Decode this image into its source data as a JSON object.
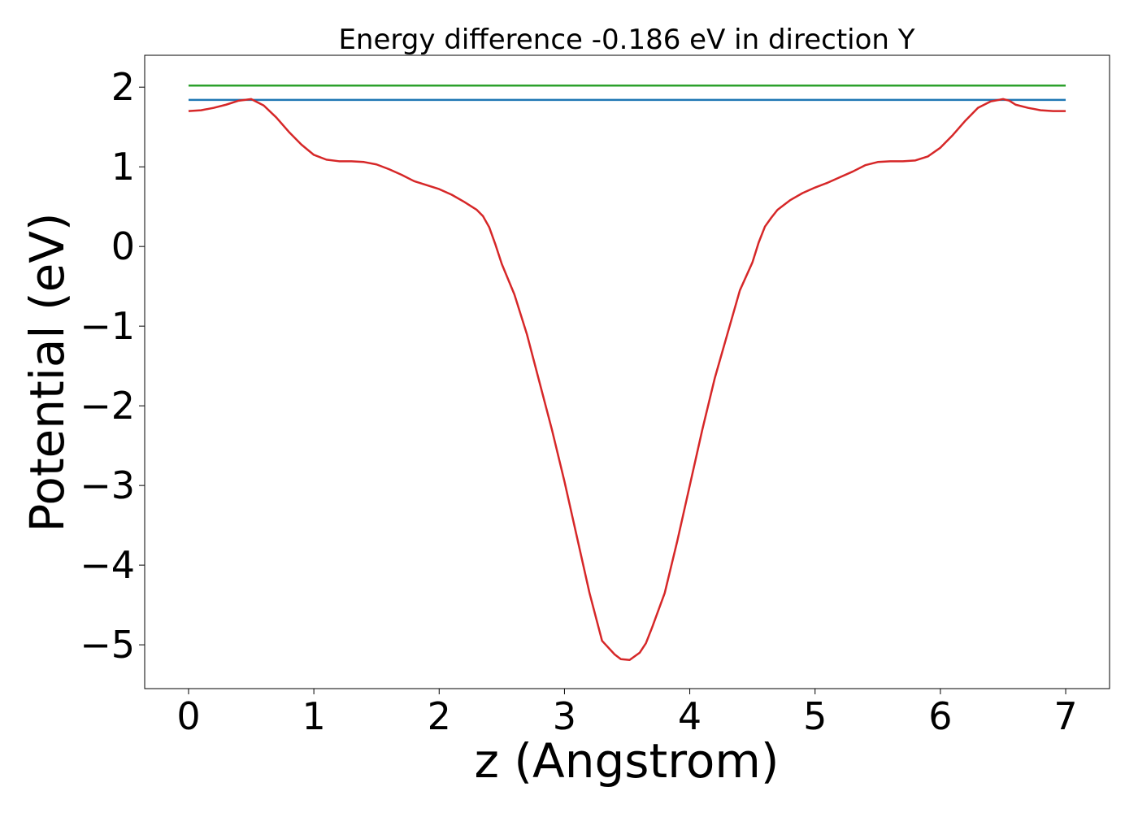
{
  "chart_data": {
    "type": "line",
    "title": "Energy difference -0.186 eV in direction Y",
    "xlabel": "z (Angstrom)",
    "ylabel": "Potential (eV)",
    "xlim": [
      -0.35,
      7.35
    ],
    "ylim": [
      -5.55,
      2.4
    ],
    "xticks": [
      0,
      1,
      2,
      3,
      4,
      5,
      6,
      7
    ],
    "xtick_labels": [
      "0",
      "1",
      "2",
      "3",
      "4",
      "5",
      "6",
      "7"
    ],
    "yticks": [
      2,
      1,
      0,
      -1,
      -2,
      -3,
      -4,
      -5
    ],
    "ytick_labels": [
      "2",
      "1",
      "0",
      "−1",
      "−2",
      "−3",
      "−4",
      "−5"
    ],
    "grid": false,
    "legend": "none",
    "series": [
      {
        "color": "#2ca02c",
        "x": [
          0,
          7
        ],
        "y": [
          2.02,
          2.02
        ]
      },
      {
        "color": "#1f77b4",
        "x": [
          0,
          7
        ],
        "y": [
          1.84,
          1.84
        ]
      },
      {
        "color": "#d62728",
        "x": [
          0,
          0.1,
          0.2,
          0.3,
          0.4,
          0.5,
          0.6,
          0.7,
          0.8,
          0.9,
          1.0,
          1.1,
          1.2,
          1.3,
          1.4,
          1.5,
          1.6,
          1.7,
          1.8,
          1.9,
          2.0,
          2.1,
          2.2,
          2.3,
          2.35,
          2.4,
          2.45,
          2.5,
          2.6,
          2.7,
          2.8,
          2.9,
          3.0,
          3.1,
          3.2,
          3.3,
          3.4,
          3.45,
          3.52,
          3.6,
          3.65,
          3.7,
          3.8,
          3.9,
          4.0,
          4.1,
          4.2,
          4.3,
          4.4,
          4.5,
          4.55,
          4.6,
          4.65,
          4.7,
          4.8,
          4.9,
          5.0,
          5.1,
          5.2,
          5.3,
          5.4,
          5.5,
          5.6,
          5.7,
          5.8,
          5.9,
          6.0,
          6.1,
          6.2,
          6.3,
          6.4,
          6.5,
          6.55,
          6.6,
          6.7,
          6.8,
          6.9,
          7.0
        ],
        "y": [
          1.7,
          1.71,
          1.74,
          1.78,
          1.83,
          1.85,
          1.77,
          1.62,
          1.44,
          1.28,
          1.15,
          1.09,
          1.07,
          1.07,
          1.06,
          1.03,
          0.97,
          0.9,
          0.82,
          0.77,
          0.72,
          0.65,
          0.56,
          0.46,
          0.38,
          0.24,
          0.02,
          -0.22,
          -0.6,
          -1.1,
          -1.7,
          -2.3,
          -2.95,
          -3.65,
          -4.35,
          -4.95,
          -5.12,
          -5.18,
          -5.19,
          -5.1,
          -4.98,
          -4.78,
          -4.35,
          -3.7,
          -3.0,
          -2.3,
          -1.65,
          -1.1,
          -0.55,
          -0.2,
          0.05,
          0.25,
          0.36,
          0.46,
          0.58,
          0.67,
          0.74,
          0.8,
          0.87,
          0.94,
          1.02,
          1.06,
          1.07,
          1.07,
          1.08,
          1.13,
          1.24,
          1.4,
          1.58,
          1.74,
          1.82,
          1.85,
          1.83,
          1.78,
          1.74,
          1.71,
          1.7,
          1.7
        ]
      }
    ]
  }
}
